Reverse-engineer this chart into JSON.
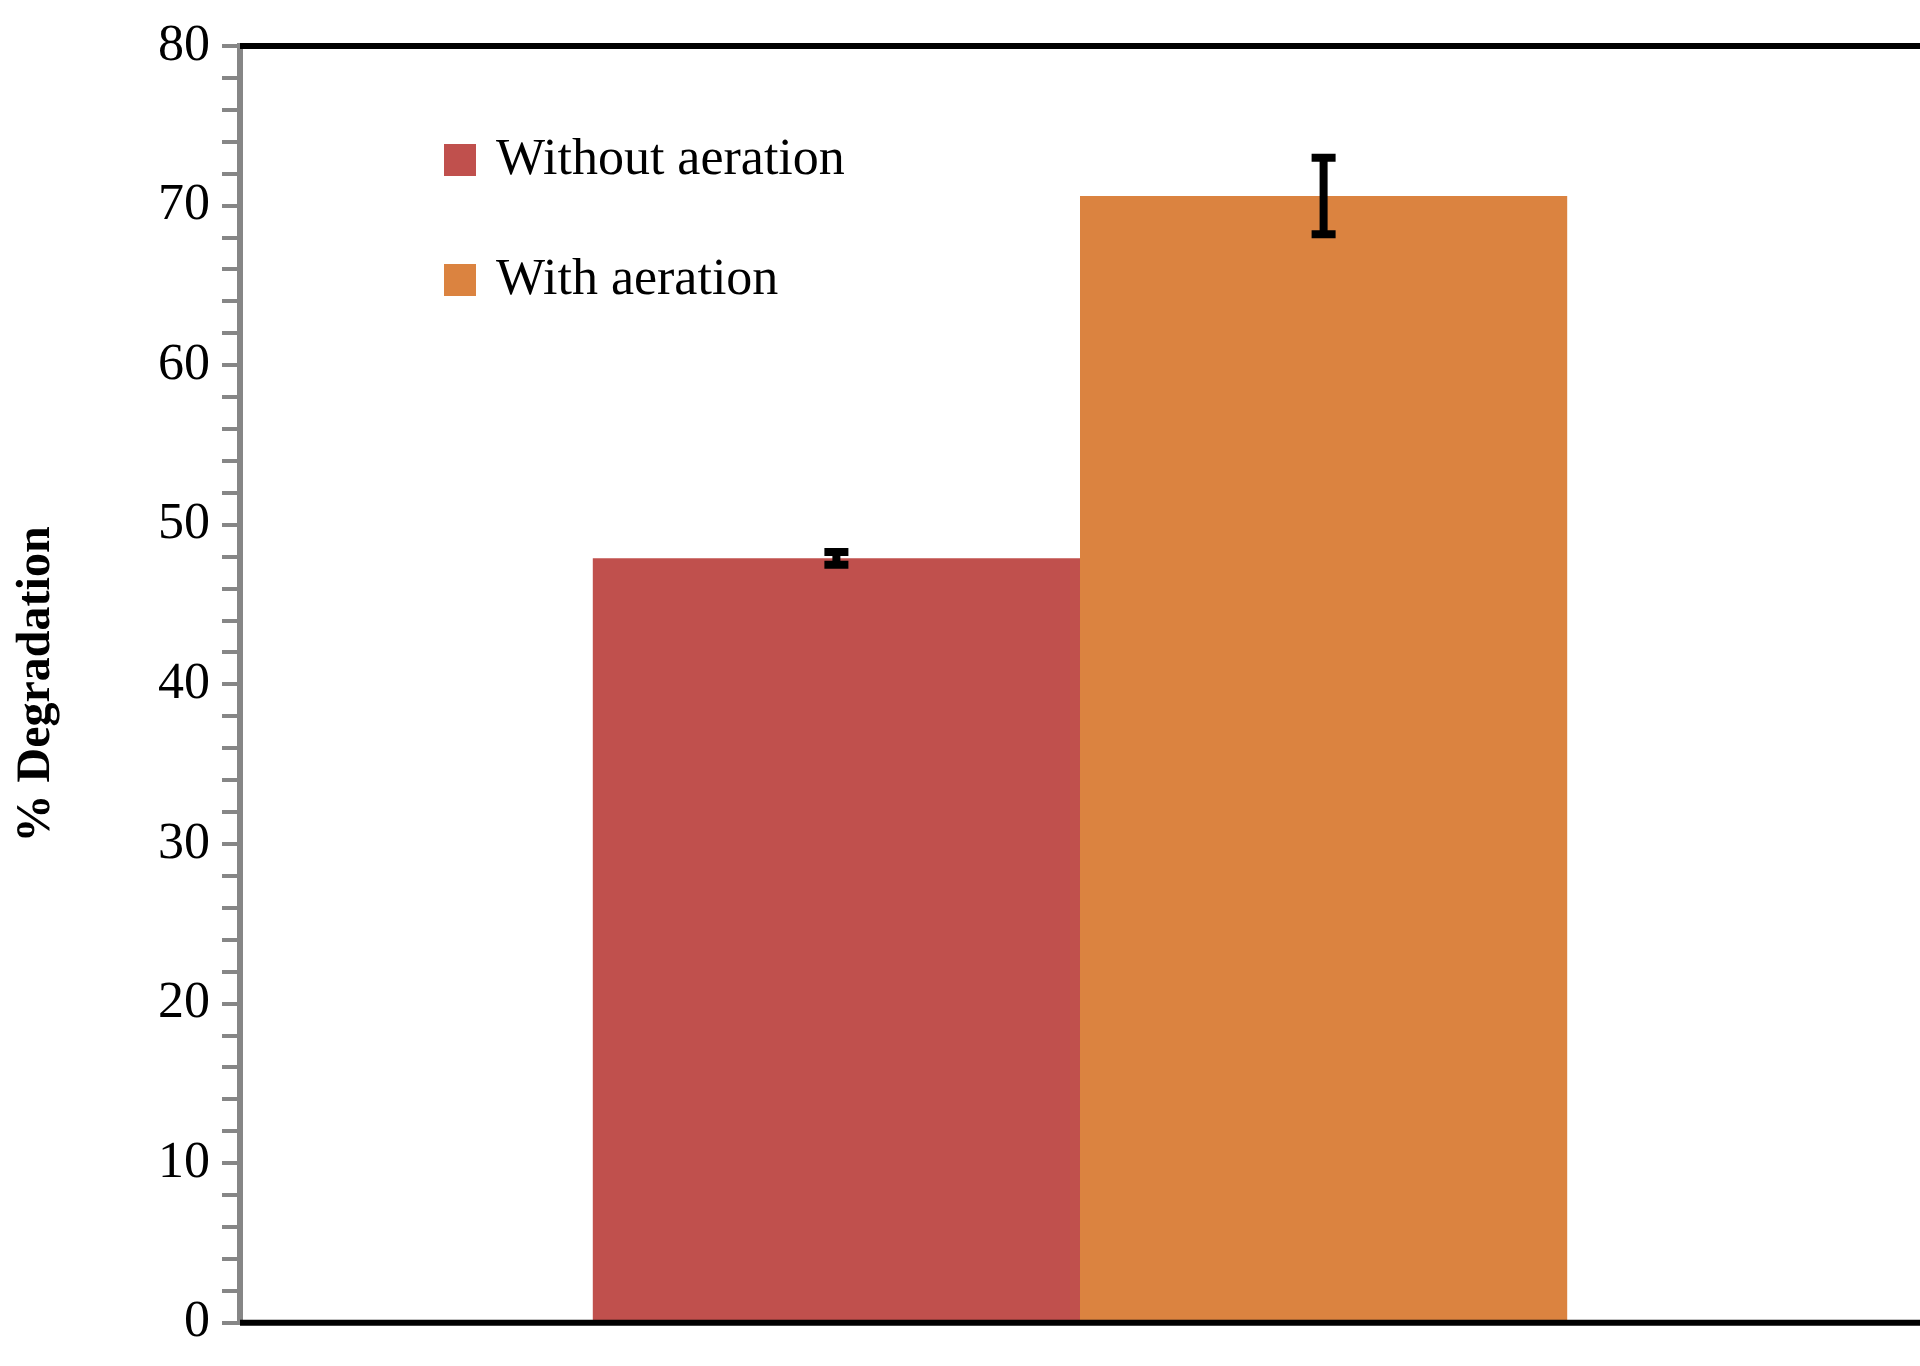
{
  "chart_data": {
    "type": "bar",
    "ylabel": "% Degradation",
    "categories": [
      null
    ],
    "series": [
      {
        "name": "Without aeration",
        "color": "#c0504d",
        "values": [
          47.9
        ],
        "errors": [
          0.4
        ]
      },
      {
        "name": "With aeration",
        "color": "#db8340",
        "values": [
          70.6
        ],
        "errors": [
          2.4
        ]
      }
    ],
    "ylim": [
      0,
      80
    ],
    "yticks": [
      0,
      {
        "value": 2,
        "label": null
      },
      {
        "value": 4,
        "label": null
      },
      {
        "value": 6,
        "label": null
      },
      {
        "value": 8,
        "label": null
      },
      10,
      {
        "value": 12,
        "label": null
      },
      {
        "value": 14,
        "label": null
      },
      {
        "value": 16,
        "label": null
      },
      {
        "value": 18,
        "label": null
      },
      20,
      {
        "value": 22,
        "label": null
      },
      {
        "value": 24,
        "label": null
      },
      {
        "value": 26,
        "label": null
      },
      {
        "value": 28,
        "label": null
      },
      30,
      {
        "value": 32,
        "label": null
      },
      {
        "value": 34,
        "label": null
      },
      {
        "value": 36,
        "label": null
      },
      {
        "value": 38,
        "label": null
      },
      40,
      {
        "value": 42,
        "label": null
      },
      {
        "value": 44,
        "label": null
      },
      {
        "value": 46,
        "label": null
      },
      {
        "value": 48,
        "label": null
      },
      50,
      {
        "value": 52,
        "label": null
      },
      {
        "value": 54,
        "label": null
      },
      {
        "value": 56,
        "label": null
      },
      {
        "value": 58,
        "label": null
      },
      60,
      {
        "value": 62,
        "label": null
      },
      {
        "value": 64,
        "label": null
      },
      {
        "value": 66,
        "label": null
      },
      {
        "value": 68,
        "label": null
      },
      70,
      {
        "value": 72,
        "label": null
      },
      {
        "value": 74,
        "label": null
      },
      {
        "value": 76,
        "label": null
      },
      {
        "value": 78,
        "label": null
      },
      80
    ],
    "grid": false,
    "legend": "top left"
  }
}
